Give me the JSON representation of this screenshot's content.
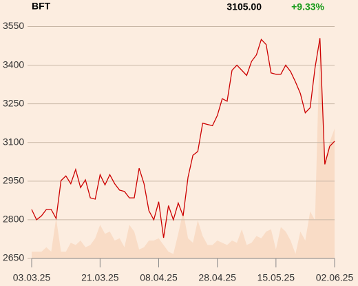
{
  "chart_data": {
    "type": "line",
    "title": "BFT",
    "last_price": "3105.00",
    "change": "+9.33%",
    "categories": [
      "03.03.25",
      null,
      null,
      null,
      null,
      null,
      null,
      null,
      null,
      null,
      null,
      null,
      null,
      null,
      "21.03.25",
      null,
      null,
      null,
      null,
      null,
      null,
      null,
      null,
      null,
      null,
      null,
      "08.04.25",
      null,
      null,
      null,
      null,
      null,
      null,
      null,
      null,
      null,
      null,
      null,
      "28.04.25",
      null,
      null,
      null,
      null,
      null,
      null,
      null,
      null,
      null,
      null,
      null,
      "15.05.25",
      null,
      null,
      null,
      null,
      null,
      null,
      null,
      null,
      null,
      null,
      null,
      "02.06.25"
    ],
    "series": [
      {
        "color": "#cc0000",
        "values": [
          2840,
          2800,
          2815,
          2840,
          2840,
          2805,
          2952,
          2970,
          2940,
          2995,
          2925,
          2955,
          2885,
          2880,
          2975,
          2935,
          2975,
          2940,
          2915,
          2910,
          2885,
          2885,
          3000,
          2940,
          2835,
          2800,
          2870,
          2730,
          2855,
          2800,
          2865,
          2815,
          2965,
          3050,
          3065,
          3175,
          3170,
          3165,
          3205,
          3270,
          3260,
          3380,
          3400,
          3380,
          3360,
          3415,
          3440,
          3500,
          3480,
          3370,
          3365,
          3365,
          3400,
          3375,
          3335,
          3290,
          3215,
          3235,
          3390,
          3505,
          3015,
          3085,
          3105
        ]
      },
      {
        "color": "#f9dcc6",
        "axis": "y2",
        "values": [
          3,
          3,
          3,
          5,
          3,
          18,
          3,
          3,
          7,
          6,
          8,
          5,
          6,
          9,
          15,
          11,
          12,
          8,
          9,
          5,
          15,
          12,
          4,
          5,
          8,
          8,
          9,
          6,
          3,
          2,
          11,
          21,
          9,
          7,
          17,
          10,
          6,
          6,
          8,
          7,
          6,
          8,
          7,
          13,
          6,
          7,
          10,
          9,
          12,
          13,
          4,
          14,
          12,
          8,
          2,
          12,
          8,
          21,
          17,
          100,
          44,
          52,
          58
        ]
      }
    ],
    "ylim": [
      2650,
      3570
    ],
    "yticks": [
      2650,
      2800,
      2950,
      3100,
      3250,
      3400,
      3550
    ],
    "y2lim": [
      0,
      100
    ],
    "grid": true,
    "change_color": "#1a9c1a"
  }
}
